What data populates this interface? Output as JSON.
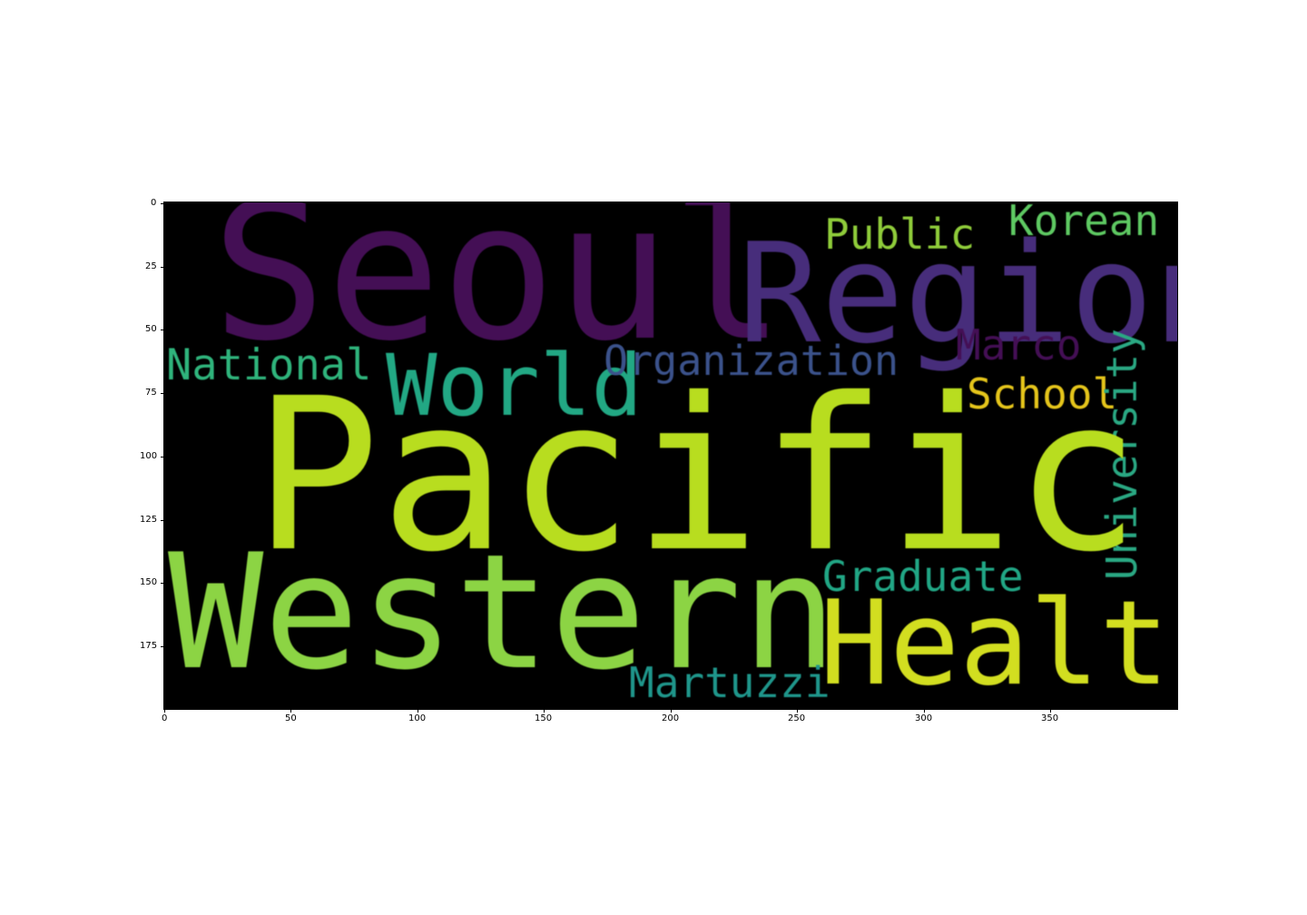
{
  "image": {
    "x_axis": {
      "ticks": [
        "0",
        "50",
        "100",
        "150",
        "200",
        "250",
        "300",
        "350"
      ]
    },
    "y_axis": {
      "ticks": [
        "0",
        "25",
        "50",
        "75",
        "100",
        "125",
        "150",
        "175"
      ]
    },
    "background_color": "#000000"
  },
  "words": [
    {
      "text": "Seoul",
      "color": "#440f55"
    },
    {
      "text": "Region",
      "color": "#472d7b"
    },
    {
      "text": "Public",
      "color": "#8fcc3a"
    },
    {
      "text": "Korean",
      "color": "#5ec962"
    },
    {
      "text": "Marco",
      "color": "#440f55"
    },
    {
      "text": "National",
      "color": "#2fb47c"
    },
    {
      "text": "World",
      "color": "#22a884"
    },
    {
      "text": "Organization",
      "color": "#3b528b"
    },
    {
      "text": "School",
      "color": "#e5c51b"
    },
    {
      "text": "University",
      "color": "#2aa883"
    },
    {
      "text": "Pacific",
      "color": "#b8dd1f"
    },
    {
      "text": "Western",
      "color": "#8cd444"
    },
    {
      "text": "Graduate",
      "color": "#21a685"
    },
    {
      "text": "Health",
      "color": "#d2de20"
    },
    {
      "text": "Martuzzi",
      "color": "#1f968b"
    }
  ]
}
